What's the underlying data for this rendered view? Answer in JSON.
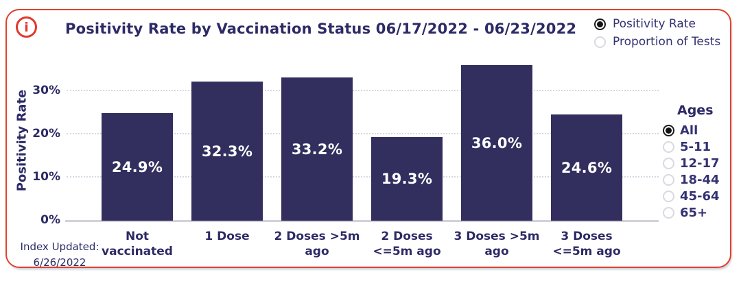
{
  "icons": {
    "info": "i"
  },
  "header": {
    "title": "Positivity Rate by Vaccination Status 06/17/2022 - 06/23/2022"
  },
  "metric_selector": {
    "options": [
      {
        "label": "Positivity Rate",
        "selected": true
      },
      {
        "label": "Proportion of Tests",
        "selected": false
      }
    ]
  },
  "ages_selector": {
    "header": "Ages",
    "options": [
      {
        "label": "All",
        "selected": true
      },
      {
        "label": "5-11",
        "selected": false
      },
      {
        "label": "12-17",
        "selected": false
      },
      {
        "label": "18-44",
        "selected": false
      },
      {
        "label": "45-64",
        "selected": false
      },
      {
        "label": "65+",
        "selected": false
      }
    ]
  },
  "chart_data": {
    "type": "bar",
    "title": "Positivity Rate by Vaccination Status 06/17/2022 - 06/23/2022",
    "xlabel": "",
    "ylabel": "Positivity Rate",
    "categories": [
      "Not vaccinated",
      "1 Dose",
      "2 Doses >5m ago",
      "2 Doses <=5m ago",
      "3 Doses >5m ago",
      "3 Doses <=5m ago"
    ],
    "category_lines": [
      [
        "Not",
        "vaccinated"
      ],
      [
        "1 Dose"
      ],
      [
        "2 Doses >5m",
        "ago"
      ],
      [
        "2 Doses",
        "<=5m ago"
      ],
      [
        "3 Doses >5m",
        "ago"
      ],
      [
        "3 Doses",
        "<=5m ago"
      ]
    ],
    "values": [
      24.9,
      32.3,
      33.2,
      19.3,
      36.0,
      24.6
    ],
    "value_labels": [
      "24.9%",
      "32.3%",
      "33.2%",
      "19.3%",
      "36.0%",
      "24.6%"
    ],
    "yticks": [
      {
        "label": "0%",
        "value": 0
      },
      {
        "label": "10%",
        "value": 10
      },
      {
        "label": "20%",
        "value": 20
      },
      {
        "label": "30%",
        "value": 30
      }
    ],
    "ylim": [
      0,
      39
    ],
    "grid": "horizontal-dotted",
    "legend_position": "top-right",
    "bar_color": "#322f5f",
    "value_label_color": "#ffffff"
  },
  "footer": {
    "line1": "Index Updated:",
    "line2": "6/26/2022"
  },
  "colors": {
    "accent_red": "#e2402c",
    "navy": "#2c2a66",
    "gridline": "#d8d7e2",
    "baseline": "#d2d1dc"
  }
}
